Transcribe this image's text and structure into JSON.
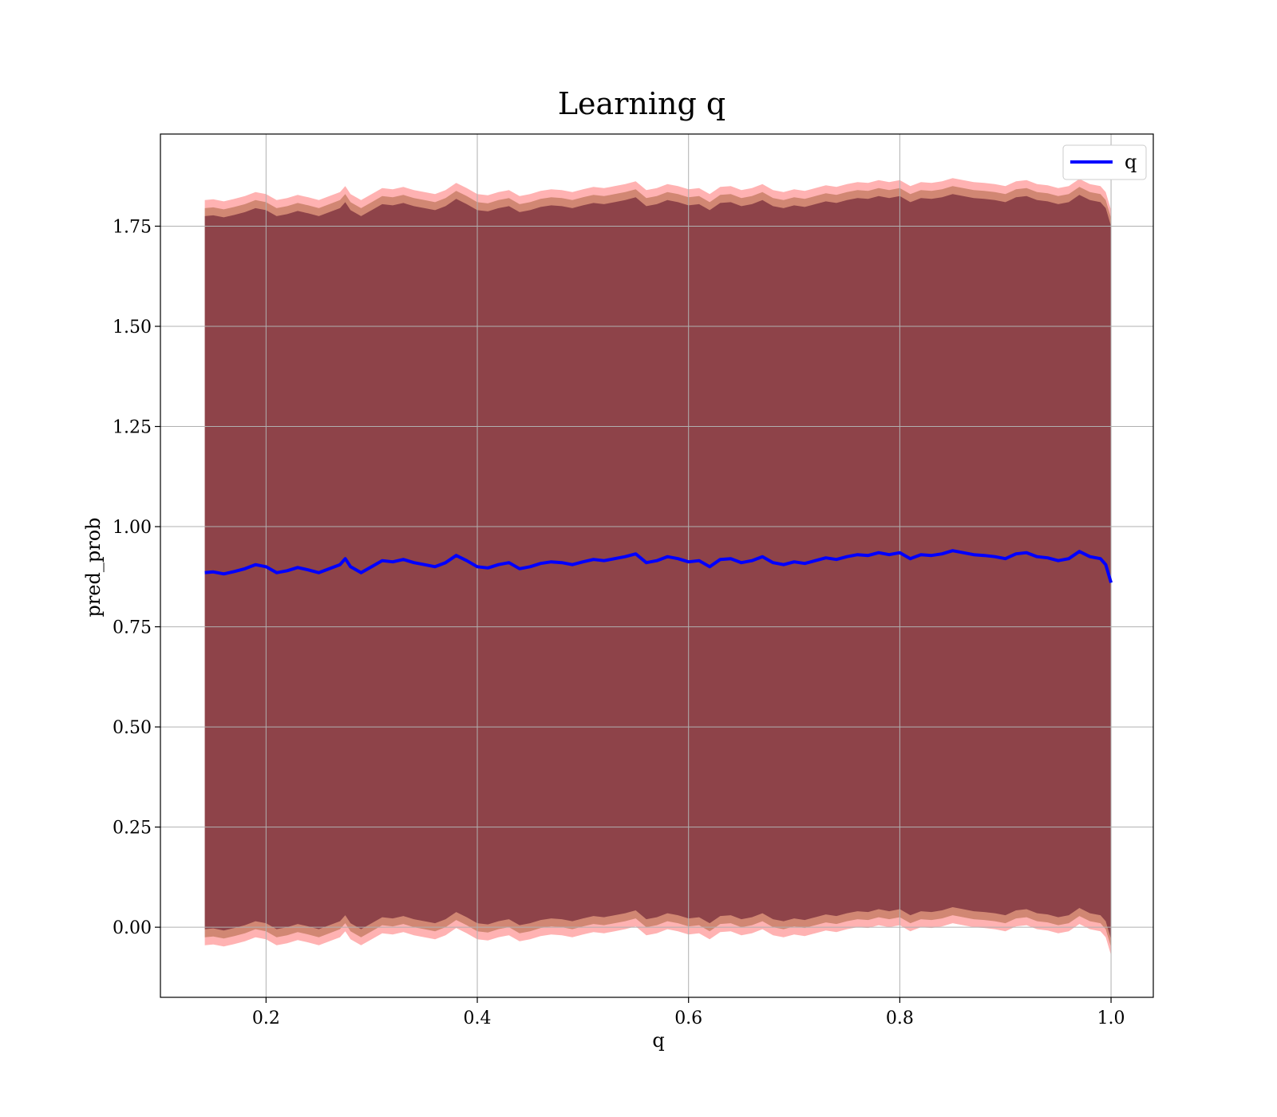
{
  "chart_data": {
    "type": "line",
    "title": "Learning q",
    "xlabel": "q",
    "ylabel": "pred_prob",
    "xlim": [
      0.1,
      1.04
    ],
    "ylim": [
      -0.175,
      1.98
    ],
    "x_ticks": [
      0.2,
      0.4,
      0.6,
      0.8,
      1.0
    ],
    "x_tick_labels": [
      "0.2",
      "0.4",
      "0.6",
      "0.8",
      "1.0"
    ],
    "y_ticks": [
      0.0,
      0.25,
      0.5,
      0.75,
      1.0,
      1.25,
      1.5,
      1.75
    ],
    "y_tick_labels": [
      "0.00",
      "0.25",
      "0.50",
      "0.75",
      "1.00",
      "1.25",
      "1.50",
      "1.75"
    ],
    "grid": true,
    "legend": {
      "position": "top-right",
      "entries": [
        "q"
      ]
    },
    "series": [
      {
        "name": "q",
        "color": "#0000ff",
        "x": [
          0.142,
          0.15,
          0.16,
          0.17,
          0.18,
          0.19,
          0.2,
          0.21,
          0.22,
          0.23,
          0.24,
          0.25,
          0.26,
          0.27,
          0.275,
          0.28,
          0.29,
          0.3,
          0.31,
          0.32,
          0.33,
          0.34,
          0.35,
          0.36,
          0.37,
          0.38,
          0.39,
          0.4,
          0.41,
          0.42,
          0.43,
          0.44,
          0.45,
          0.46,
          0.47,
          0.48,
          0.49,
          0.5,
          0.51,
          0.52,
          0.53,
          0.54,
          0.55,
          0.56,
          0.57,
          0.58,
          0.59,
          0.6,
          0.61,
          0.62,
          0.63,
          0.64,
          0.65,
          0.66,
          0.67,
          0.68,
          0.69,
          0.7,
          0.71,
          0.72,
          0.73,
          0.74,
          0.75,
          0.76,
          0.77,
          0.78,
          0.79,
          0.8,
          0.81,
          0.82,
          0.83,
          0.84,
          0.85,
          0.86,
          0.87,
          0.88,
          0.89,
          0.9,
          0.91,
          0.92,
          0.93,
          0.94,
          0.95,
          0.96,
          0.97,
          0.98,
          0.99,
          0.995,
          1.0
        ],
        "values": [
          0.885,
          0.887,
          0.882,
          0.888,
          0.895,
          0.905,
          0.9,
          0.885,
          0.89,
          0.898,
          0.892,
          0.885,
          0.895,
          0.905,
          0.92,
          0.9,
          0.885,
          0.9,
          0.915,
          0.912,
          0.918,
          0.91,
          0.905,
          0.9,
          0.91,
          0.928,
          0.915,
          0.9,
          0.897,
          0.905,
          0.91,
          0.895,
          0.9,
          0.908,
          0.912,
          0.91,
          0.905,
          0.912,
          0.918,
          0.915,
          0.92,
          0.925,
          0.932,
          0.91,
          0.915,
          0.925,
          0.92,
          0.912,
          0.915,
          0.9,
          0.918,
          0.92,
          0.91,
          0.915,
          0.925,
          0.91,
          0.905,
          0.912,
          0.908,
          0.915,
          0.922,
          0.918,
          0.925,
          0.93,
          0.928,
          0.935,
          0.93,
          0.935,
          0.92,
          0.93,
          0.928,
          0.932,
          0.94,
          0.935,
          0.93,
          0.928,
          0.925,
          0.92,
          0.932,
          0.935,
          0.925,
          0.922,
          0.915,
          0.92,
          0.938,
          0.925,
          0.92,
          0.905,
          0.86
        ]
      }
    ],
    "bands": [
      {
        "name": "",
        "color": "#ff0000",
        "offset": 0.93,
        "opacity": 0.3
      },
      {
        "name": "",
        "color": "#8b4513",
        "offset": 0.91,
        "opacity": 0.4
      },
      {
        "name": "",
        "color": "#4b0020",
        "offset": 0.89,
        "opacity": 0.5
      }
    ]
  }
}
